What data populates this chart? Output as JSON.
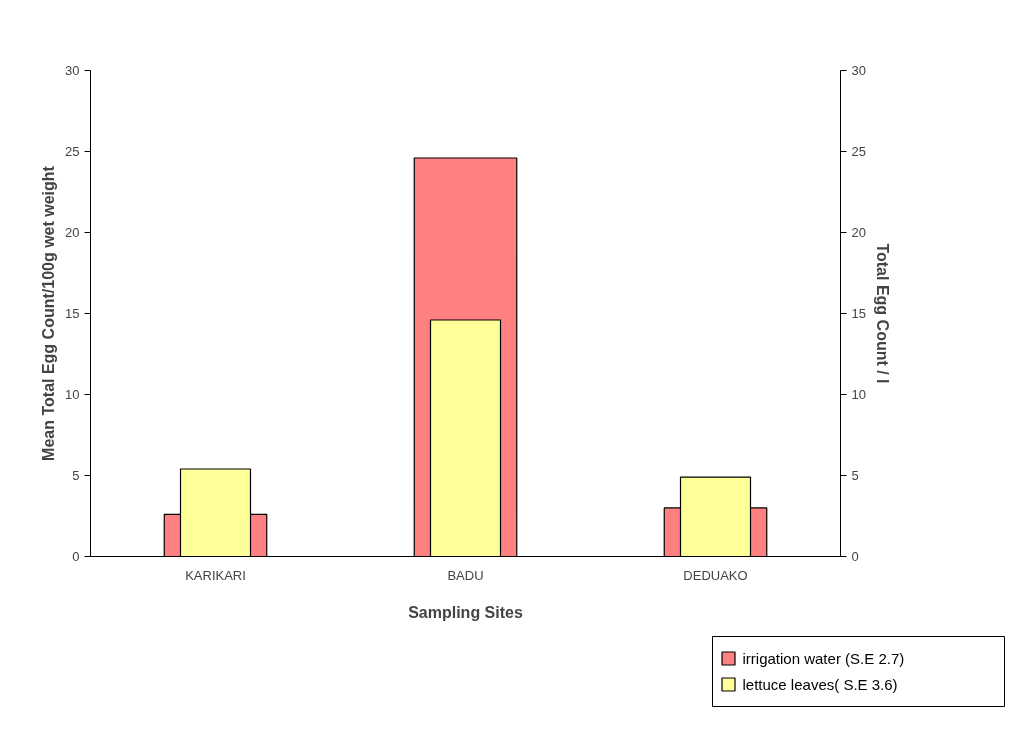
{
  "chart_data": {
    "type": "bar",
    "xlabel": "Sampling Sites",
    "ylabel": "Mean Total Egg Count/100g wet weight",
    "y2label": "Total Egg Count / l",
    "categories": [
      "KARIKARI",
      "BADU",
      "DEDUAKO"
    ],
    "series": [
      {
        "name": "irrigation water (S.E 2.7)",
        "color": "#ff8080",
        "values": [
          2.6,
          24.6,
          3.0
        ]
      },
      {
        "name": "lettuce leaves( S.E 3.6)",
        "color": "#ffff99",
        "values": [
          5.4,
          14.6,
          4.9
        ]
      }
    ],
    "ylim": [
      0,
      30
    ],
    "yticks": [
      0,
      5,
      10,
      15,
      20,
      25,
      30
    ],
    "y2lim": [
      0,
      30
    ],
    "y2ticks": [
      0,
      5,
      10,
      15,
      20,
      25,
      30
    ],
    "grid": false,
    "legend": "bottom right"
  }
}
